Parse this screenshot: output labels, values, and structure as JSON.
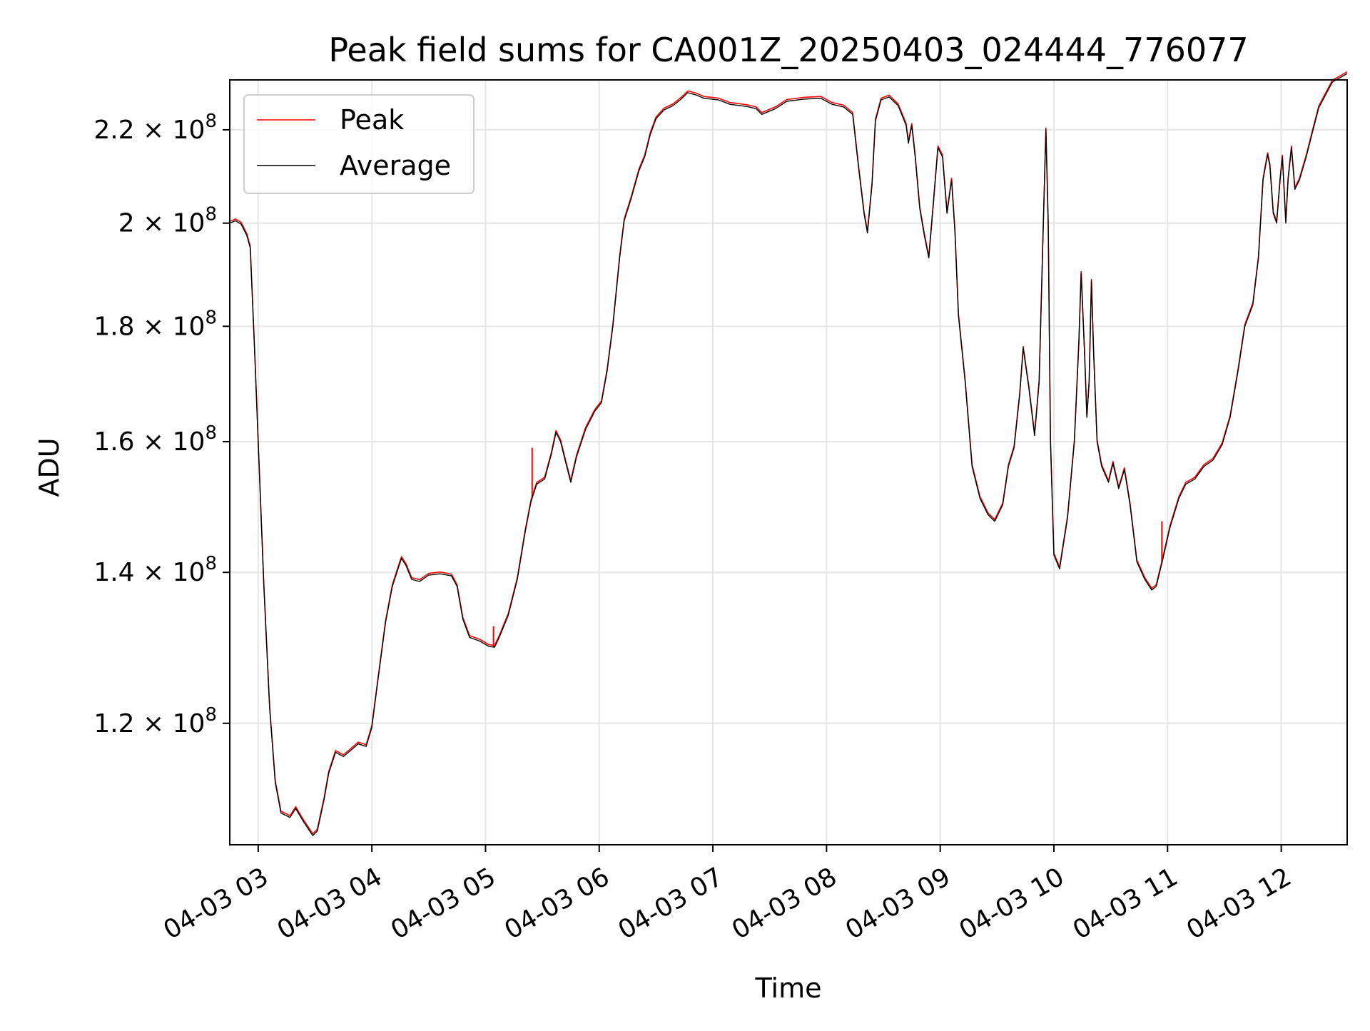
{
  "chart_data": {
    "type": "line",
    "title": "Peak field sums for CA001Z_20250403_024444_776077",
    "xlabel": "Time",
    "ylabel": "ADU",
    "x_unit": "hours (2025-04-03)",
    "xlim": [
      2.75,
      12.58
    ],
    "ylim": [
      106000000,
      231500000
    ],
    "yscale": "log",
    "grid": true,
    "legend_position": "top-left",
    "x_ticks": [
      {
        "value": 3,
        "label": "04-03 03"
      },
      {
        "value": 4,
        "label": "04-03 04"
      },
      {
        "value": 5,
        "label": "04-03 05"
      },
      {
        "value": 6,
        "label": "04-03 06"
      },
      {
        "value": 7,
        "label": "04-03 07"
      },
      {
        "value": 8,
        "label": "04-03 08"
      },
      {
        "value": 9,
        "label": "04-03 09"
      },
      {
        "value": 10,
        "label": "04-03 10"
      },
      {
        "value": 11,
        "label": "04-03 11"
      },
      {
        "value": 12,
        "label": "04-03 12"
      }
    ],
    "y_ticks": [
      {
        "value": 120000000,
        "mantissa": "1.2",
        "base": "10",
        "exp": "8"
      },
      {
        "value": 140000000,
        "mantissa": "1.4",
        "base": "10",
        "exp": "8"
      },
      {
        "value": 160000000,
        "mantissa": "1.6",
        "base": "10",
        "exp": "8"
      },
      {
        "value": 180000000,
        "mantissa": "1.8",
        "base": "10",
        "exp": "8"
      },
      {
        "value": 200000000,
        "mantissa": "2",
        "base": "10",
        "exp": "8"
      },
      {
        "value": 220000000,
        "mantissa": "2.2",
        "base": "10",
        "exp": "8"
      }
    ],
    "series": [
      {
        "name": "Peak",
        "color": "#ff0000",
        "spikes": [
          {
            "x": 5.07,
            "y": 132500000
          },
          {
            "x": 5.41,
            "y": 159000000
          },
          {
            "x": 10.95,
            "y": 147500000
          }
        ]
      },
      {
        "name": "Average",
        "color": "#000000",
        "points": [
          [
            2.75,
            200000000
          ],
          [
            2.8,
            200500000
          ],
          [
            2.85,
            199800000
          ],
          [
            2.9,
            197500000
          ],
          [
            2.93,
            195000000
          ],
          [
            2.97,
            175000000
          ],
          [
            3.0,
            160000000
          ],
          [
            3.05,
            138000000
          ],
          [
            3.1,
            122000000
          ],
          [
            3.15,
            113000000
          ],
          [
            3.2,
            109500000
          ],
          [
            3.28,
            109000000
          ],
          [
            3.33,
            110000000
          ],
          [
            3.4,
            108500000
          ],
          [
            3.48,
            107000000
          ],
          [
            3.52,
            107500000
          ],
          [
            3.58,
            111000000
          ],
          [
            3.62,
            114000000
          ],
          [
            3.68,
            116500000
          ],
          [
            3.75,
            116000000
          ],
          [
            3.82,
            116800000
          ],
          [
            3.88,
            117500000
          ],
          [
            3.95,
            117200000
          ],
          [
            4.0,
            119500000
          ],
          [
            4.05,
            125000000
          ],
          [
            4.12,
            133000000
          ],
          [
            4.18,
            138000000
          ],
          [
            4.24,
            141000000
          ],
          [
            4.26,
            142000000
          ],
          [
            4.3,
            141000000
          ],
          [
            4.35,
            139000000
          ],
          [
            4.42,
            138700000
          ],
          [
            4.5,
            139600000
          ],
          [
            4.6,
            139800000
          ],
          [
            4.7,
            139500000
          ],
          [
            4.75,
            138000000
          ],
          [
            4.8,
            133500000
          ],
          [
            4.86,
            131000000
          ],
          [
            4.95,
            130500000
          ],
          [
            5.03,
            129800000
          ],
          [
            5.08,
            129700000
          ],
          [
            5.12,
            131000000
          ],
          [
            5.2,
            134000000
          ],
          [
            5.28,
            139000000
          ],
          [
            5.35,
            146000000
          ],
          [
            5.4,
            150500000
          ],
          [
            5.45,
            153200000
          ],
          [
            5.52,
            154000000
          ],
          [
            5.58,
            158000000
          ],
          [
            5.62,
            161500000
          ],
          [
            5.66,
            160000000
          ],
          [
            5.7,
            157000000
          ],
          [
            5.75,
            153500000
          ],
          [
            5.8,
            157500000
          ],
          [
            5.88,
            162000000
          ],
          [
            5.96,
            165000000
          ],
          [
            6.02,
            166500000
          ],
          [
            6.07,
            172000000
          ],
          [
            6.12,
            180000000
          ],
          [
            6.18,
            193000000
          ],
          [
            6.22,
            200500000
          ],
          [
            6.28,
            205000000
          ],
          [
            6.35,
            211000000
          ],
          [
            6.4,
            214000000
          ],
          [
            6.45,
            219000000
          ],
          [
            6.5,
            222500000
          ],
          [
            6.57,
            224500000
          ],
          [
            6.65,
            225500000
          ],
          [
            6.72,
            227000000
          ],
          [
            6.78,
            228500000
          ],
          [
            6.85,
            228000000
          ],
          [
            6.92,
            227200000
          ],
          [
            7.05,
            226800000
          ],
          [
            7.15,
            225800000
          ],
          [
            7.3,
            225300000
          ],
          [
            7.38,
            224800000
          ],
          [
            7.43,
            223500000
          ],
          [
            7.55,
            224800000
          ],
          [
            7.65,
            226500000
          ],
          [
            7.8,
            227000000
          ],
          [
            7.95,
            227200000
          ],
          [
            8.05,
            225800000
          ],
          [
            8.15,
            225200000
          ],
          [
            8.23,
            223500000
          ],
          [
            8.28,
            212000000
          ],
          [
            8.33,
            202000000
          ],
          [
            8.36,
            198000000
          ],
          [
            8.4,
            208000000
          ],
          [
            8.43,
            222000000
          ],
          [
            8.48,
            226800000
          ],
          [
            8.55,
            227500000
          ],
          [
            8.63,
            225500000
          ],
          [
            8.7,
            221000000
          ],
          [
            8.72,
            217000000
          ],
          [
            8.75,
            221000000
          ],
          [
            8.78,
            214000000
          ],
          [
            8.82,
            203000000
          ],
          [
            8.86,
            197500000
          ],
          [
            8.9,
            193000000
          ],
          [
            8.94,
            204000000
          ],
          [
            8.98,
            216000000
          ],
          [
            9.02,
            214000000
          ],
          [
            9.06,
            202000000
          ],
          [
            9.1,
            209000000
          ],
          [
            9.13,
            198000000
          ],
          [
            9.16,
            182000000
          ],
          [
            9.22,
            170000000
          ],
          [
            9.28,
            156000000
          ],
          [
            9.35,
            151000000
          ],
          [
            9.42,
            148500000
          ],
          [
            9.48,
            147500000
          ],
          [
            9.55,
            150000000
          ],
          [
            9.6,
            156000000
          ],
          [
            9.65,
            159000000
          ],
          [
            9.7,
            168000000
          ],
          [
            9.73,
            176000000
          ],
          [
            9.78,
            169000000
          ],
          [
            9.83,
            161000000
          ],
          [
            9.87,
            170000000
          ],
          [
            9.91,
            202000000
          ],
          [
            9.93,
            220000000
          ],
          [
            9.95,
            200000000
          ],
          [
            9.97,
            160000000
          ],
          [
            10.0,
            142500000
          ],
          [
            10.05,
            140500000
          ],
          [
            10.12,
            148000000
          ],
          [
            10.18,
            160000000
          ],
          [
            10.22,
            177000000
          ],
          [
            10.24,
            190000000
          ],
          [
            10.27,
            175000000
          ],
          [
            10.29,
            164000000
          ],
          [
            10.31,
            170000000
          ],
          [
            10.33,
            188500000
          ],
          [
            10.35,
            175000000
          ],
          [
            10.38,
            160000000
          ],
          [
            10.42,
            156000000
          ],
          [
            10.48,
            153500000
          ],
          [
            10.52,
            156500000
          ],
          [
            10.57,
            152500000
          ],
          [
            10.62,
            155500000
          ],
          [
            10.67,
            150000000
          ],
          [
            10.73,
            141500000
          ],
          [
            10.8,
            139000000
          ],
          [
            10.86,
            137500000
          ],
          [
            10.9,
            138000000
          ],
          [
            10.96,
            142000000
          ],
          [
            11.02,
            146500000
          ],
          [
            11.1,
            151000000
          ],
          [
            11.16,
            153200000
          ],
          [
            11.24,
            154000000
          ],
          [
            11.32,
            156000000
          ],
          [
            11.4,
            157000000
          ],
          [
            11.48,
            159500000
          ],
          [
            11.55,
            164000000
          ],
          [
            11.62,
            172000000
          ],
          [
            11.68,
            180000000
          ],
          [
            11.75,
            184000000
          ],
          [
            11.8,
            193000000
          ],
          [
            11.84,
            209000000
          ],
          [
            11.88,
            214500000
          ],
          [
            11.9,
            212000000
          ],
          [
            11.93,
            202000000
          ],
          [
            11.96,
            200000000
          ],
          [
            11.99,
            209000000
          ],
          [
            12.01,
            214000000
          ],
          [
            12.04,
            200000000
          ],
          [
            12.06,
            209000000
          ],
          [
            12.09,
            216000000
          ],
          [
            12.12,
            207000000
          ],
          [
            12.16,
            209000000
          ],
          [
            12.22,
            214000000
          ],
          [
            12.28,
            220000000
          ],
          [
            12.33,
            225000000
          ],
          [
            12.4,
            228500000
          ],
          [
            12.45,
            231000000
          ],
          [
            12.58,
            233000000
          ]
        ]
      }
    ]
  }
}
